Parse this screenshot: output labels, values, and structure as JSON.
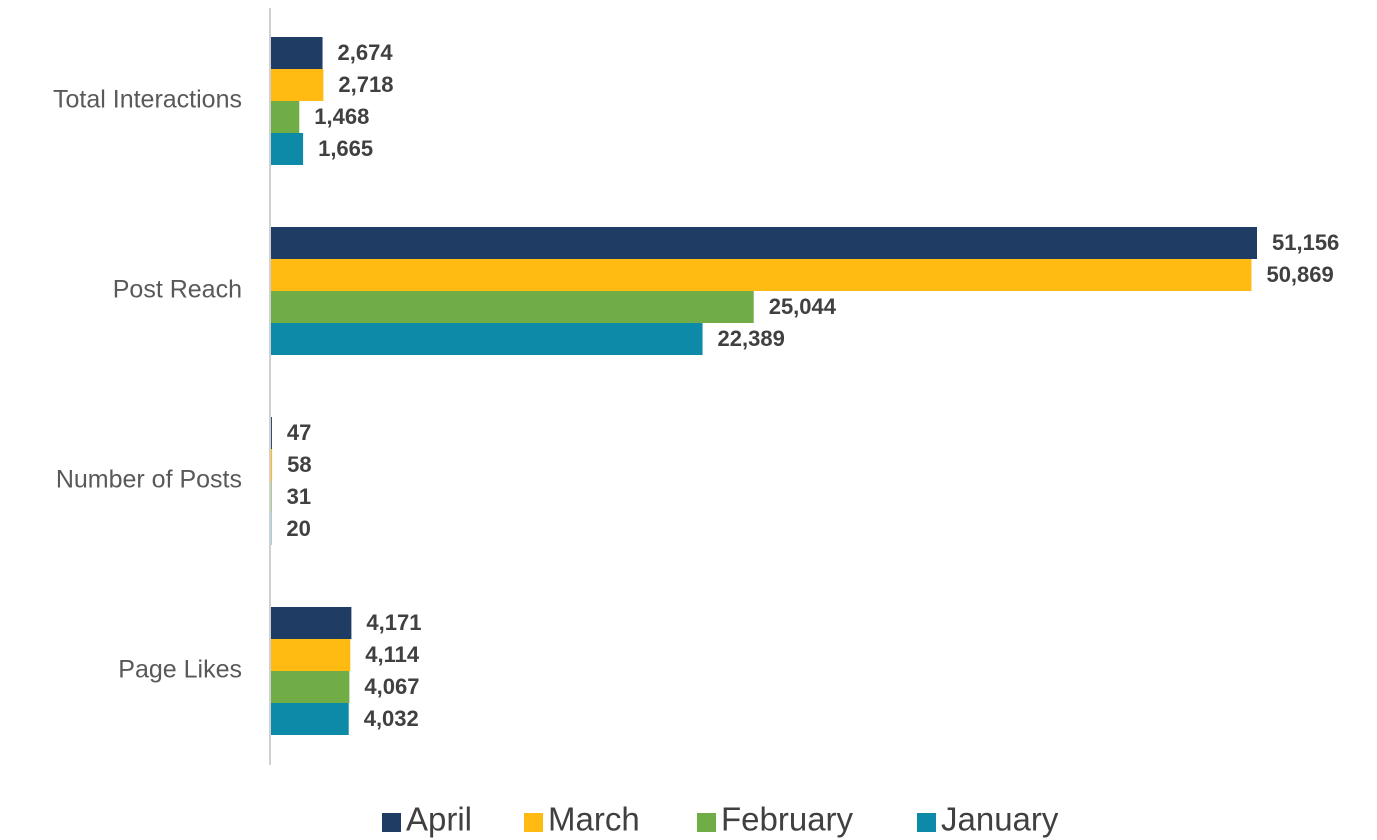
{
  "chart_data": {
    "type": "bar",
    "orientation": "horizontal",
    "categories": [
      "Total Interactions",
      "Post Reach",
      "Number of Posts",
      "Page Likes"
    ],
    "series": [
      {
        "name": "April",
        "color": "#1f3d64",
        "values": [
          2674,
          51156,
          47,
          4171
        ],
        "value_labels": [
          "2,674",
          "51,156",
          "47",
          "4,171"
        ]
      },
      {
        "name": "March",
        "color": "#ffbb12",
        "values": [
          2718,
          50869,
          58,
          4114
        ],
        "value_labels": [
          "2,718",
          "50,869",
          "58",
          "4,114"
        ]
      },
      {
        "name": "February",
        "color": "#70ad47",
        "values": [
          1468,
          25044,
          31,
          4067
        ],
        "value_labels": [
          "1,468",
          "25,044",
          "31",
          "4,067"
        ]
      },
      {
        "name": "January",
        "color": "#0c8aa8",
        "values": [
          1665,
          22389,
          20,
          4032
        ],
        "value_labels": [
          "1,665",
          "22,389",
          "20",
          "4,032"
        ]
      }
    ]
  }
}
